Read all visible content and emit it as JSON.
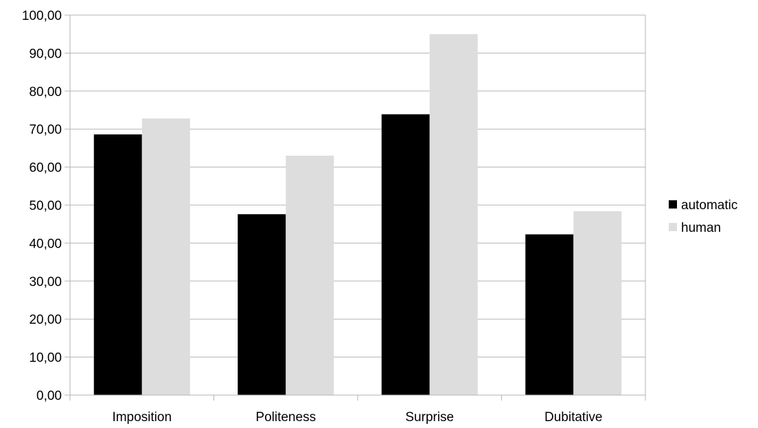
{
  "chart_data": {
    "type": "bar",
    "title": "",
    "xlabel": "",
    "ylabel": "",
    "categories": [
      "Imposition",
      "Politeness",
      "Surprise",
      "Dubitative"
    ],
    "series": [
      {
        "name": "automatic",
        "color": "#000000",
        "values": [
          68.6,
          47.6,
          73.9,
          42.3
        ]
      },
      {
        "name": "human",
        "color": "#dddddd",
        "values": [
          72.8,
          63.0,
          95.0,
          48.4
        ]
      }
    ],
    "ylim": [
      0,
      100
    ],
    "yticks": [
      "0,00",
      "10,00",
      "20,00",
      "30,00",
      "40,00",
      "50,00",
      "60,00",
      "70,00",
      "80,00",
      "90,00",
      "100,00"
    ],
    "grid": true,
    "grid_color": "#b3b3b3",
    "legend_position": "right"
  }
}
